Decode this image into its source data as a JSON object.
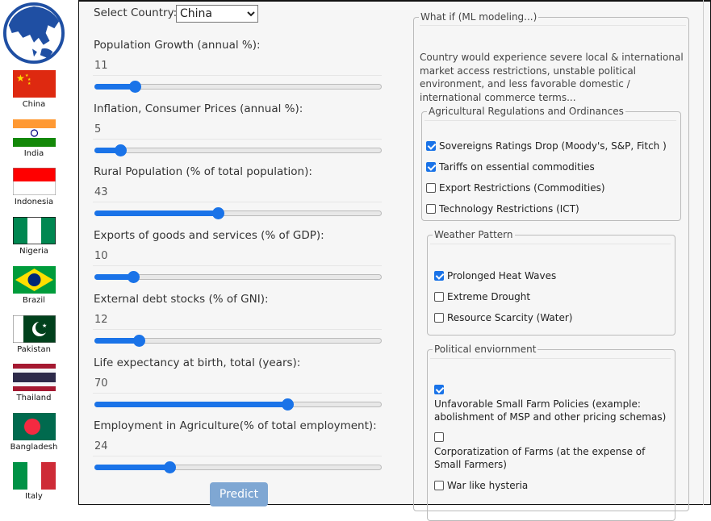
{
  "sidebar": {
    "logo": "globe-asia-icon",
    "countries": [
      {
        "name": "China",
        "flag": "china"
      },
      {
        "name": "India",
        "flag": "india"
      },
      {
        "name": "Indonesia",
        "flag": "indonesia"
      },
      {
        "name": "Nigeria",
        "flag": "nigeria"
      },
      {
        "name": "Brazil",
        "flag": "brazil"
      },
      {
        "name": "Pakistan",
        "flag": "pakistan"
      },
      {
        "name": "Thailand",
        "flag": "thailand"
      },
      {
        "name": "Bangladesh",
        "flag": "bangladesh"
      },
      {
        "name": "Italy",
        "flag": "italy"
      }
    ]
  },
  "form": {
    "select_label": "Select Country:",
    "selected_country": "China",
    "sliders": [
      {
        "label": "Population Growth (annual %):",
        "value": "11",
        "position": 0.14
      },
      {
        "label": "Inflation, Consumer Prices (annual %):",
        "value": "5",
        "position": 0.09
      },
      {
        "label": "Rural Population (% of total population):",
        "value": "43",
        "position": 0.43
      },
      {
        "label": "Exports of goods and services (% of GDP):",
        "value": "10",
        "position": 0.135
      },
      {
        "label": "External debt stocks (% of GNI):",
        "value": "12",
        "position": 0.155
      },
      {
        "label": "Life expectancy at birth, total (years):",
        "value": "70",
        "position": 0.67
      },
      {
        "label": "Employment in Agriculture(% of total employment):",
        "value": "24",
        "position": 0.26
      }
    ],
    "predict_label": "Predict"
  },
  "whatif": {
    "legend": "What if (ML modeling...)",
    "description": "Country would experience severe local & international market access restrictions, unstable political environment, and less favorable domestic / international commerce terms...",
    "groups": [
      {
        "legend": "Agricultural Regulations and Ordinances",
        "items": [
          {
            "label": "Sovereigns Ratings Drop (Moody's, S&P, Fitch )",
            "checked": true
          },
          {
            "label": "Tariffs on essential commodities",
            "checked": true
          },
          {
            "label": "Export Restrictions (Commodities)",
            "checked": false
          },
          {
            "label": "Technology Restrictions (ICT)",
            "checked": false
          }
        ]
      },
      {
        "legend": "Weather Pattern",
        "items": [
          {
            "label": "Prolonged Heat Waves",
            "checked": true
          },
          {
            "label": "Extreme Drought",
            "checked": false
          },
          {
            "label": "Resource Scarcity (Water)",
            "checked": false
          }
        ]
      },
      {
        "legend": "Political enviornment",
        "items": [
          {
            "label": "Unfavorable Small Farm Policies (example: abolishment of MSP and other pricing schemas)",
            "checked": true
          },
          {
            "label": "Corporatization of Farms (at the expense of Small Farmers)",
            "checked": false
          },
          {
            "label": "War like hysteria",
            "checked": false
          }
        ]
      }
    ]
  },
  "colors": {
    "accent": "#1a73e8",
    "predict": "#7fa7d3"
  }
}
